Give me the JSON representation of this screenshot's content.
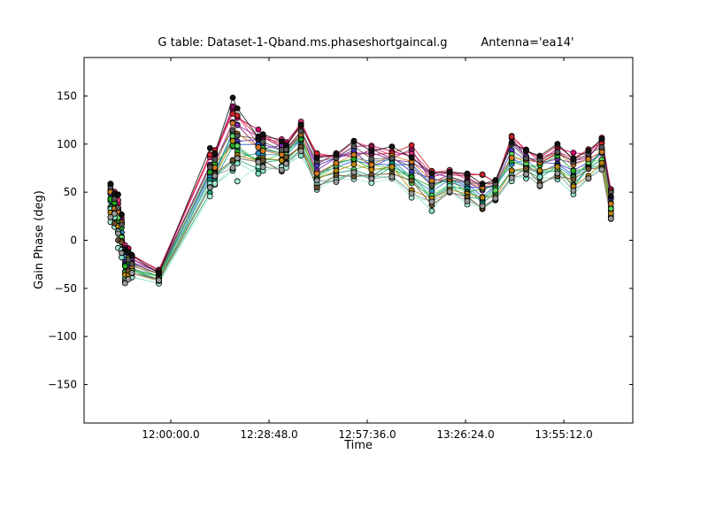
{
  "figure": {
    "background_color": "#ffffff",
    "frame_color": "#000000"
  },
  "chart_data": {
    "type": "line",
    "title": "G table: Dataset-1-Qband.ms.phaseshortgaincal.g",
    "antenna_label": "Antenna='ea14'",
    "xlabel": "Time",
    "ylabel": "Gain Phase (deg)",
    "ylim": [
      -190,
      190
    ],
    "yticks": [
      -150,
      -100,
      -50,
      0,
      50,
      100,
      150
    ],
    "x_axis_range_seconds": [
      -1525,
      8125
    ],
    "xticks_seconds": [
      0,
      1728,
      3456,
      5184,
      6912
    ],
    "xtick_labels": [
      "12:00:00.0",
      "12:28:48.0",
      "12:57:36.0",
      "13:26:24.0",
      "13:55:12.0"
    ],
    "grid": false,
    "legend": "none",
    "clusters": {
      "t_seconds": [
        -1060,
        -990,
        -925,
        -865,
        -805,
        -745,
        -685,
        -210,
        690,
        775,
        1090,
        1170,
        1540,
        1620,
        1950,
        2030,
        2290,
        2570,
        2910,
        3220,
        3530,
        3890,
        4235,
        4590,
        4905,
        5215,
        5480,
        5710,
        5995,
        6250,
        6490,
        6800,
        7080,
        7345,
        7580,
        7740
      ],
      "phase_low": [
        18,
        12,
        -8,
        -25,
        -52,
        -48,
        -42,
        -46,
        40,
        52,
        63,
        58,
        64,
        70,
        66,
        74,
        85,
        48,
        55,
        57,
        54,
        58,
        38,
        27,
        46,
        37,
        22,
        39,
        57,
        62,
        54,
        60,
        45,
        58,
        68,
        18
      ],
      "phase_high": [
        62,
        55,
        48,
        35,
        5,
        -8,
        -15,
        -30,
        97,
        95,
        150,
        140,
        118,
        112,
        108,
        105,
        128,
        92,
        97,
        105,
        100,
        100,
        103,
        80,
        76,
        72,
        70,
        68,
        115,
        98,
        92,
        102,
        97,
        100,
        113,
        55
      ],
      "phase_median": [
        45,
        38,
        25,
        5,
        -25,
        -30,
        -28,
        -38,
        70,
        74,
        108,
        98,
        90,
        88,
        85,
        88,
        100,
        66,
        75,
        79,
        77,
        72,
        70,
        55,
        60,
        55,
        49,
        54,
        85,
        80,
        72,
        80,
        70,
        79,
        90,
        40
      ]
    },
    "series": [
      {
        "name": "series-01",
        "color": "#d4006a",
        "frac": 0.97
      },
      {
        "name": "series-02",
        "color": "#e8327d",
        "frac": 0.8
      },
      {
        "name": "series-03",
        "color": "#8a0f62",
        "frac": 0.62
      },
      {
        "name": "series-04",
        "color": "#cc2229",
        "frac": 0.88
      },
      {
        "name": "series-05",
        "color": "#7f2aa8",
        "frac": 0.45
      },
      {
        "name": "series-06",
        "color": "#4a3ac2",
        "frac": 0.3
      },
      {
        "name": "series-07",
        "color": "#2255cc",
        "frac": 0.15
      },
      {
        "name": "series-08",
        "color": "#2a8fbd",
        "frac": -0.05
      },
      {
        "name": "series-09",
        "color": "#128a7e",
        "frac": -0.3
      },
      {
        "name": "series-10",
        "color": "#19a974",
        "frac": -0.5
      },
      {
        "name": "series-11",
        "color": "#22aa22",
        "frac": 0.05
      },
      {
        "name": "series-12",
        "color": "#5fd35f",
        "frac": -0.2
      },
      {
        "name": "series-13",
        "color": "#88e0c8",
        "frac": -0.78
      },
      {
        "name": "series-14",
        "color": "#a8ecd9",
        "frac": -0.93
      },
      {
        "name": "series-15",
        "color": "#d07820",
        "frac": 0.35
      },
      {
        "name": "series-16",
        "color": "#b8860b",
        "frac": -0.4
      },
      {
        "name": "series-17",
        "color": "#6b4f2a",
        "frac": -0.6
      },
      {
        "name": "series-18",
        "color": "#555555",
        "frac": 0.55
      },
      {
        "name": "series-19",
        "color": "#999999",
        "frac": -0.7
      },
      {
        "name": "series-20",
        "color": "#111111",
        "frac": 0.92
      }
    ],
    "noise_frac": 0.3,
    "frac_weight": 0.78,
    "marker": {
      "radius": 3,
      "edge_color": "#000000",
      "edge_width": 0.8
    },
    "line_width": 1,
    "line_opacity": 0.85
  }
}
